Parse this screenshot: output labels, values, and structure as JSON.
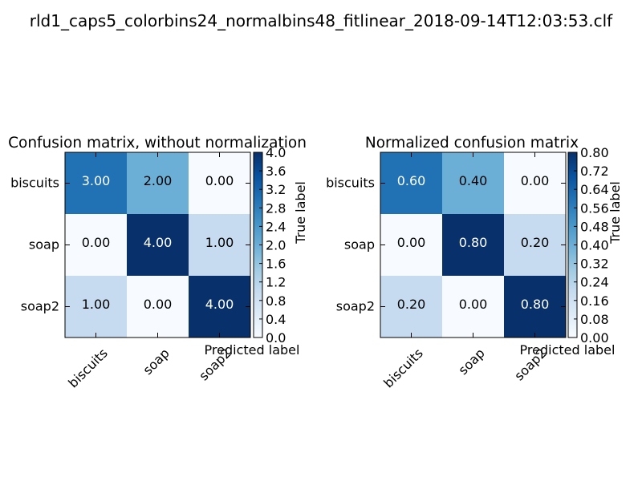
{
  "suptitle": "rld1_caps5_colorbins24_normalbins48_fitlinear_2018-09-14T12:03:53.clf",
  "chart_data": [
    {
      "type": "heatmap",
      "title": "Confusion matrix, without normalization",
      "xlabel": "Predicted label",
      "ylabel": "True label",
      "x_categories": [
        "biscuits",
        "soap",
        "soap2"
      ],
      "y_categories": [
        "biscuits",
        "soap",
        "soap2"
      ],
      "values": [
        [
          3,
          2,
          0
        ],
        [
          0,
          4,
          1
        ],
        [
          1,
          0,
          4
        ]
      ],
      "cell_labels": [
        [
          "3.00",
          "2.00",
          "0.00"
        ],
        [
          "0.00",
          "4.00",
          "1.00"
        ],
        [
          "1.00",
          "0.00",
          "4.00"
        ]
      ],
      "colormap": "Blues",
      "vrange": [
        0,
        4
      ],
      "colorbar_ticks": [
        "0.0",
        "0.4",
        "0.8",
        "1.2",
        "1.6",
        "2.0",
        "2.4",
        "2.8",
        "3.2",
        "3.6",
        "4.0"
      ]
    },
    {
      "type": "heatmap",
      "title": "Normalized confusion matrix",
      "xlabel": "Predicted label",
      "ylabel": "True label",
      "x_categories": [
        "biscuits",
        "soap",
        "soap2"
      ],
      "y_categories": [
        "biscuits",
        "soap",
        "soap2"
      ],
      "values": [
        [
          0.6,
          0.4,
          0.0
        ],
        [
          0.0,
          0.8,
          0.2
        ],
        [
          0.2,
          0.0,
          0.8
        ]
      ],
      "cell_labels": [
        [
          "0.60",
          "0.40",
          "0.00"
        ],
        [
          "0.00",
          "0.80",
          "0.20"
        ],
        [
          "0.20",
          "0.00",
          "0.80"
        ]
      ],
      "colormap": "Blues",
      "vrange": [
        0,
        0.8
      ],
      "colorbar_ticks": [
        "0.00",
        "0.08",
        "0.16",
        "0.24",
        "0.32",
        "0.40",
        "0.48",
        "0.56",
        "0.64",
        "0.72",
        "0.80"
      ]
    }
  ]
}
